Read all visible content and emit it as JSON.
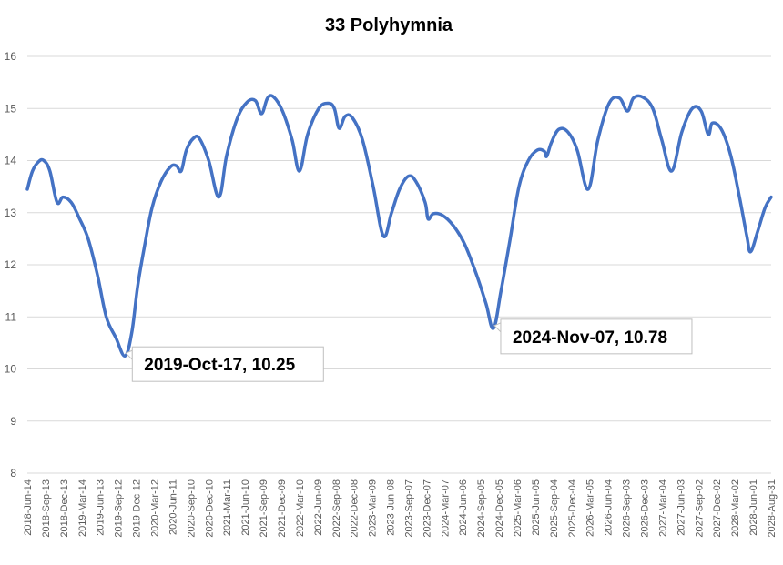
{
  "chart_data": {
    "type": "line",
    "title": "33 Polyhymnia",
    "xlabel": "",
    "ylabel": "",
    "ylim": [
      8,
      16
    ],
    "yticks": [
      8,
      9,
      10,
      11,
      12,
      13,
      14,
      15,
      16
    ],
    "grid": "horizontal",
    "legend": "none",
    "line_color": "#4472C4",
    "x_start": "2018-06-14",
    "x_end": "2028-08-31",
    "xtick_labels": [
      "2018-Jun-14",
      "2018-Sep-13",
      "2018-Dec-13",
      "2019-Mar-14",
      "2019-Jun-13",
      "2019-Sep-12",
      "2019-Dec-12",
      "2020-Mar-12",
      "2020-Jun-11",
      "2020-Sep-10",
      "2020-Dec-10",
      "2021-Mar-11",
      "2021-Jun-10",
      "2021-Sep-09",
      "2021-Dec-09",
      "2022-Mar-10",
      "2022-Jun-09",
      "2022-Sep-08",
      "2022-Dec-08",
      "2023-Mar-09",
      "2023-Jun-08",
      "2023-Sep-07",
      "2023-Dec-07",
      "2024-Mar-07",
      "2024-Jun-06",
      "2024-Sep-05",
      "2024-Dec-05",
      "2025-Mar-06",
      "2025-Jun-05",
      "2025-Sep-04",
      "2025-Dec-04",
      "2026-Mar-05",
      "2026-Jun-04",
      "2026-Sep-03",
      "2026-Dec-03",
      "2027-Mar-04",
      "2027-Jun-03",
      "2027-Sep-02",
      "2027-Dec-02",
      "2028-Mar-02",
      "2028-Jun-01",
      "2028-Aug-31"
    ],
    "series": [
      {
        "points": [
          [
            "2018-06-14",
            13.45
          ],
          [
            "2018-07-10",
            13.8
          ],
          [
            "2018-08-10",
            13.98
          ],
          [
            "2018-09-05",
            14.0
          ],
          [
            "2018-10-05",
            13.8
          ],
          [
            "2018-11-10",
            13.2
          ],
          [
            "2018-12-10",
            13.3
          ],
          [
            "2019-01-20",
            13.2
          ],
          [
            "2019-03-01",
            12.9
          ],
          [
            "2019-04-15",
            12.5
          ],
          [
            "2019-06-01",
            11.8
          ],
          [
            "2019-07-15",
            11.0
          ],
          [
            "2019-09-01",
            10.6
          ],
          [
            "2019-10-17",
            10.25
          ],
          [
            "2019-11-20",
            10.7
          ],
          [
            "2019-12-20",
            11.6
          ],
          [
            "2020-01-25",
            12.4
          ],
          [
            "2020-03-01",
            13.1
          ],
          [
            "2020-04-15",
            13.6
          ],
          [
            "2020-06-01",
            13.88
          ],
          [
            "2020-07-01",
            13.9
          ],
          [
            "2020-07-25",
            13.8
          ],
          [
            "2020-08-20",
            14.2
          ],
          [
            "2020-09-25",
            14.43
          ],
          [
            "2020-10-25",
            14.42
          ],
          [
            "2020-12-10",
            14.0
          ],
          [
            "2021-01-30",
            13.3
          ],
          [
            "2021-03-10",
            14.1
          ],
          [
            "2021-05-01",
            14.8
          ],
          [
            "2021-06-20",
            15.12
          ],
          [
            "2021-08-01",
            15.15
          ],
          [
            "2021-09-01",
            14.9
          ],
          [
            "2021-10-01",
            15.2
          ],
          [
            "2021-11-01",
            15.22
          ],
          [
            "2021-12-15",
            14.95
          ],
          [
            "2022-02-01",
            14.4
          ],
          [
            "2022-03-10",
            13.8
          ],
          [
            "2022-04-20",
            14.5
          ],
          [
            "2022-06-15",
            15.0
          ],
          [
            "2022-08-01",
            15.1
          ],
          [
            "2022-09-01",
            15.0
          ],
          [
            "2022-09-25",
            14.62
          ],
          [
            "2022-10-25",
            14.85
          ],
          [
            "2022-12-01",
            14.82
          ],
          [
            "2023-01-20",
            14.4
          ],
          [
            "2023-03-15",
            13.5
          ],
          [
            "2023-05-05",
            12.55
          ],
          [
            "2023-06-15",
            13.0
          ],
          [
            "2023-07-25",
            13.45
          ],
          [
            "2023-09-07",
            13.7
          ],
          [
            "2023-10-15",
            13.6
          ],
          [
            "2023-11-30",
            13.2
          ],
          [
            "2023-12-15",
            12.88
          ],
          [
            "2024-01-10",
            12.98
          ],
          [
            "2024-02-25",
            12.95
          ],
          [
            "2024-04-20",
            12.75
          ],
          [
            "2024-06-15",
            12.4
          ],
          [
            "2024-08-15",
            11.8
          ],
          [
            "2024-10-01",
            11.25
          ],
          [
            "2024-11-07",
            10.78
          ],
          [
            "2024-12-15",
            11.5
          ],
          [
            "2025-01-30",
            12.5
          ],
          [
            "2025-03-15",
            13.5
          ],
          [
            "2025-05-01",
            14.0
          ],
          [
            "2025-06-15",
            14.2
          ],
          [
            "2025-07-20",
            14.18
          ],
          [
            "2025-08-01",
            14.08
          ],
          [
            "2025-08-25",
            14.35
          ],
          [
            "2025-10-01",
            14.6
          ],
          [
            "2025-11-15",
            14.55
          ],
          [
            "2026-01-01",
            14.2
          ],
          [
            "2026-02-25",
            13.45
          ],
          [
            "2026-04-15",
            14.4
          ],
          [
            "2026-06-10",
            15.1
          ],
          [
            "2026-08-01",
            15.2
          ],
          [
            "2026-09-10",
            14.95
          ],
          [
            "2026-10-10",
            15.2
          ],
          [
            "2026-11-25",
            15.22
          ],
          [
            "2027-01-15",
            15.0
          ],
          [
            "2027-03-01",
            14.4
          ],
          [
            "2027-04-20",
            13.8
          ],
          [
            "2027-06-10",
            14.55
          ],
          [
            "2027-08-01",
            15.0
          ],
          [
            "2027-09-15",
            14.95
          ],
          [
            "2027-10-20",
            14.5
          ],
          [
            "2027-11-10",
            14.72
          ],
          [
            "2027-12-25",
            14.6
          ],
          [
            "2028-02-10",
            14.1
          ],
          [
            "2028-03-25",
            13.3
          ],
          [
            "2028-05-01",
            12.55
          ],
          [
            "2028-05-20",
            12.25
          ],
          [
            "2028-06-25",
            12.65
          ],
          [
            "2028-08-01",
            13.1
          ],
          [
            "2028-08-31",
            13.3
          ]
        ]
      }
    ],
    "annotations": [
      {
        "x": "2019-10-17",
        "y": 10.25,
        "text": "2019-Oct-17, 10.25"
      },
      {
        "x": "2024-11-07",
        "y": 10.78,
        "text": "2024-Nov-07, 10.78"
      }
    ]
  }
}
